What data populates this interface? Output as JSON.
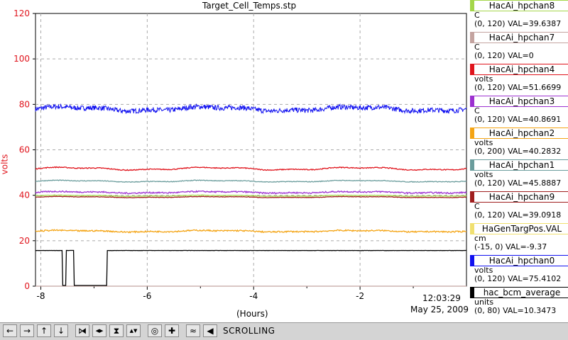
{
  "window": {
    "title": "Target_Cell_Temps.stp"
  },
  "axes": {
    "y_label": "volts",
    "x_label": "(Hours)",
    "y_ticks": [
      "0",
      "20",
      "40",
      "60",
      "80",
      "100",
      "120"
    ],
    "x_ticks": [
      "-8",
      "-6",
      "-4",
      "-2"
    ],
    "time": "12:03:29",
    "date": "May 25, 2009"
  },
  "legend": [
    {
      "name": "HacAi_hpchan8",
      "unit": "C",
      "range": "(0, 120) VAL=39.6387",
      "color": "#a4d64a"
    },
    {
      "name": "HacAi_hpchan7",
      "unit": "C",
      "range": "(0, 120) VAL=0",
      "color": "#c4a4a0"
    },
    {
      "name": "HacAi_hpchan4",
      "unit": "volts",
      "range": "(0, 120) VAL=51.6699",
      "color": "#e0141c"
    },
    {
      "name": "HacAi_hpchan3",
      "unit": "C",
      "range": "(0, 120) VAL=40.8691",
      "color": "#9c30d0"
    },
    {
      "name": "HacAi_hpchan2",
      "unit": "volts",
      "range": "(0, 200) VAL=40.2832",
      "color": "#f4a414"
    },
    {
      "name": "HacAi_hpchan1",
      "unit": "volts",
      "range": "(0, 120) VAL=45.8887",
      "color": "#6a9c9c"
    },
    {
      "name": "HacAi_hpchan9",
      "unit": "C",
      "range": "(0, 120) VAL=39.0918",
      "color": "#a01e1e"
    },
    {
      "name": "HaGenTargPos.VAL",
      "unit": "cm",
      "range": "(-15, 0) VAL=-9.37",
      "color": "#f0e070"
    },
    {
      "name": "HacAi_hpchan0",
      "unit": "volts",
      "range": "(0, 120) VAL=75.4102",
      "color": "#1010f0"
    },
    {
      "name": "hac_bcm_average",
      "unit": "units",
      "range": "(0, 80) VAL=10.3473",
      "color": "#000000"
    }
  ],
  "toolbar": {
    "mode": "SCROLLING",
    "buttons": [
      {
        "name": "scroll-left-button",
        "glyph": "←"
      },
      {
        "name": "scroll-right-button",
        "glyph": "→"
      },
      {
        "name": "scroll-up-button",
        "glyph": "↑"
      },
      {
        "name": "scroll-down-button",
        "glyph": "↓"
      },
      {
        "name": "zoom-in-x-button",
        "glyph": "⧒"
      },
      {
        "name": "zoom-out-x-button",
        "glyph": "◀▶"
      },
      {
        "name": "zoom-in-y-button",
        "glyph": "⧗"
      },
      {
        "name": "zoom-out-y-button",
        "glyph": "▲▼"
      },
      {
        "name": "autoscale-button",
        "glyph": "◎"
      },
      {
        "name": "add-button",
        "glyph": "✚"
      },
      {
        "name": "scroll-mode-button",
        "glyph": "≈"
      },
      {
        "name": "back-button",
        "glyph": "◀"
      }
    ]
  },
  "chart_data": {
    "type": "line",
    "title": "Target_Cell_Temps.stp",
    "xlabel": "(Hours)",
    "ylabel": "volts",
    "xlim": [
      -8.1,
      0
    ],
    "ylim": [
      0,
      120
    ],
    "grid": true,
    "series": [
      {
        "name": "HacAi_hpchan0",
        "color": "#1010f0",
        "level": 78,
        "noise": 1.1,
        "wave": 0.8
      },
      {
        "name": "HacAi_hpchan4",
        "color": "#e0141c",
        "level": 51.7,
        "noise": 0.2,
        "wave": 0.5
      },
      {
        "name": "HacAi_hpchan1",
        "color": "#6a9c9c",
        "level": 46.2,
        "noise": 0.15,
        "wave": 0.3
      },
      {
        "name": "HacAi_hpchan3",
        "color": "#9c30d0",
        "level": 41.3,
        "noise": 0.3,
        "wave": 0.3
      },
      {
        "name": "HacAi_hpchan8",
        "color": "#a4d64a",
        "level": 39.8,
        "noise": 0.1,
        "wave": 0.2
      },
      {
        "name": "HacAi_hpchan9",
        "color": "#a01e1e",
        "level": 39.2,
        "noise": 0.1,
        "wave": 0.2
      },
      {
        "name": "HacAi_hpchan2",
        "color": "#f4a414",
        "level": 24.2,
        "noise": 0.3,
        "wave": 0.3
      },
      {
        "name": "HacAi_hpchan7",
        "color": "#c4a4a0",
        "level": 0,
        "noise": 0,
        "wave": 0
      },
      {
        "name": "hac_bcm_average",
        "color": "#000000",
        "level": 15.7,
        "noise": 0.1,
        "wave": 0,
        "beam": true
      }
    ]
  }
}
